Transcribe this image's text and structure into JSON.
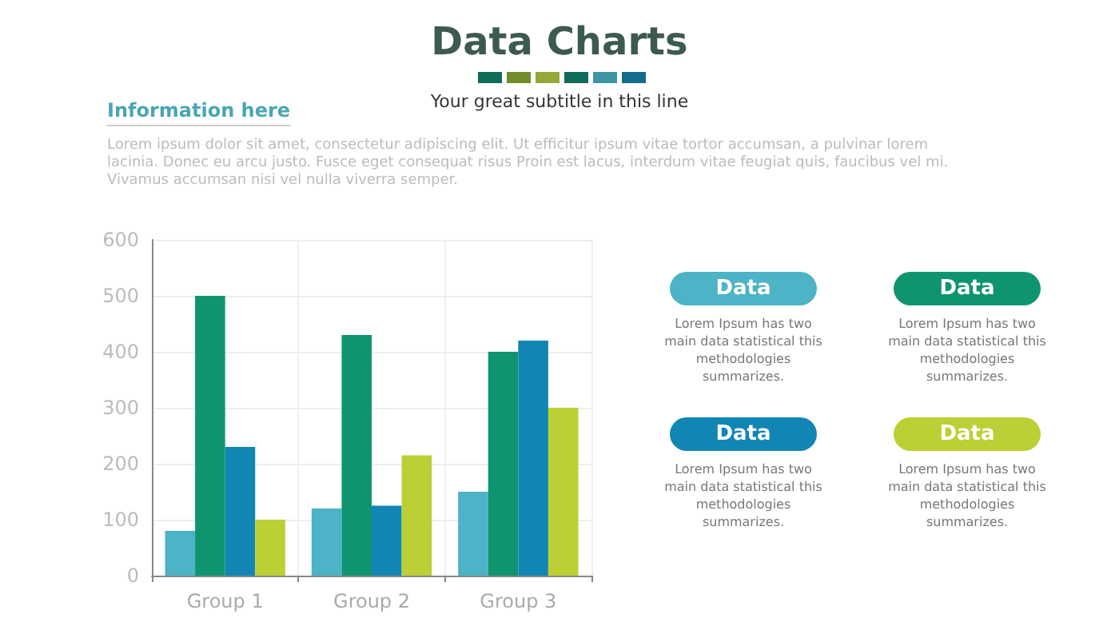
{
  "chart_data": {
    "type": "bar",
    "title": "Data Charts",
    "subtitle": "Your great subtitle in this line",
    "categories": [
      "Group 1",
      "Group 2",
      "Group 3"
    ],
    "series": [
      {
        "name": "Data",
        "color": "#4db3c6",
        "values": [
          80,
          120,
          150
        ]
      },
      {
        "name": "Data",
        "color": "#0f9470",
        "values": [
          500,
          430,
          400
        ]
      },
      {
        "name": "Data",
        "color": "#1186b5",
        "values": [
          230,
          125,
          420
        ]
      },
      {
        "name": "Data",
        "color": "#bccf34",
        "values": [
          100,
          215,
          300
        ]
      }
    ],
    "ylim": [
      0,
      600
    ],
    "yticks": [
      0,
      100,
      200,
      300,
      400,
      500,
      600
    ],
    "grid": true,
    "legend": "right",
    "annotations": [
      "Information here",
      "Lorem ipsum dolor sit amet, consectetur adipiscing elit. Ut efficitur ipsum vitae tortor accumsan, a pulvinar lorem lacinia. Donec eu arcu justo. Fusce eget consequat risus Proin est lacus, interdum vitae feugiat quis, faucibus vel mi. Vivamus accumsan nisi vel nulla viverra semper.",
      "Lorem Ipsum has two main data statistical this methodologies summarizes.",
      "Lorem Ipsum has two main data statistical this methodologies summarizes.",
      "Lorem Ipsum has two main data statistical this methodologies summarizes.",
      "Lorem Ipsum has two main data statistical this methodologies summarizes."
    ]
  }
}
